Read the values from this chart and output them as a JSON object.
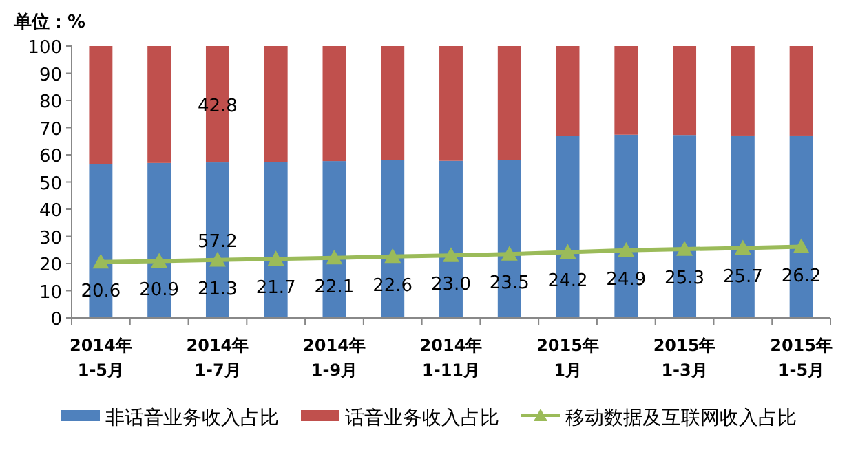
{
  "chart_data": {
    "type": "bar",
    "stacked": true,
    "ylabel": "单位：%",
    "categories": [
      "2014年\n1-5月",
      null,
      "2014年\n1-7月",
      null,
      "2014年\n1-9月",
      null,
      "2014年\n1-11月",
      null,
      "2015年\n1月",
      null,
      "2015年\n1-3月",
      null,
      "2015年\n1-5月"
    ],
    "series": [
      {
        "name": "非话音业务收入占比",
        "color": "#4f81bd",
        "values": [
          56.6,
          57.0,
          57.2,
          57.3,
          57.7,
          58.0,
          57.8,
          58.2,
          66.9,
          67.4,
          67.3,
          67.1,
          67.1
        ],
        "value_labels": [
          null,
          null,
          "57.2",
          null,
          null,
          null,
          null,
          null,
          null,
          null,
          null,
          null,
          null
        ]
      },
      {
        "name": "话音业务收入占比",
        "color": "#c0504d",
        "values": [
          43.4,
          43.0,
          42.8,
          42.7,
          42.3,
          42.0,
          42.2,
          41.8,
          33.1,
          32.6,
          32.7,
          32.9,
          32.9
        ],
        "value_labels": [
          null,
          null,
          "42.8",
          null,
          null,
          null,
          null,
          null,
          null,
          null,
          null,
          null,
          null
        ]
      },
      {
        "name": "移动数据及互联网收入占比",
        "type": "line",
        "color": "#9bbb59",
        "marker": "triangle",
        "line_style": "solid",
        "values": [
          20.6,
          20.9,
          21.3,
          21.7,
          22.1,
          22.6,
          23.0,
          23.5,
          24.2,
          24.9,
          25.3,
          25.7,
          26.2
        ],
        "value_labels": [
          "20.6",
          "20.9",
          "21.3",
          "21.7",
          "22.1",
          "22.6",
          "23.0",
          "23.5",
          "24.2",
          "24.9",
          "25.3",
          "25.7",
          "26.2"
        ]
      }
    ],
    "ylim": [
      0,
      100
    ],
    "yticks": [
      0,
      10,
      20,
      30,
      40,
      50,
      60,
      70,
      80,
      90,
      100
    ],
    "grid": false,
    "legend": "bottom"
  }
}
